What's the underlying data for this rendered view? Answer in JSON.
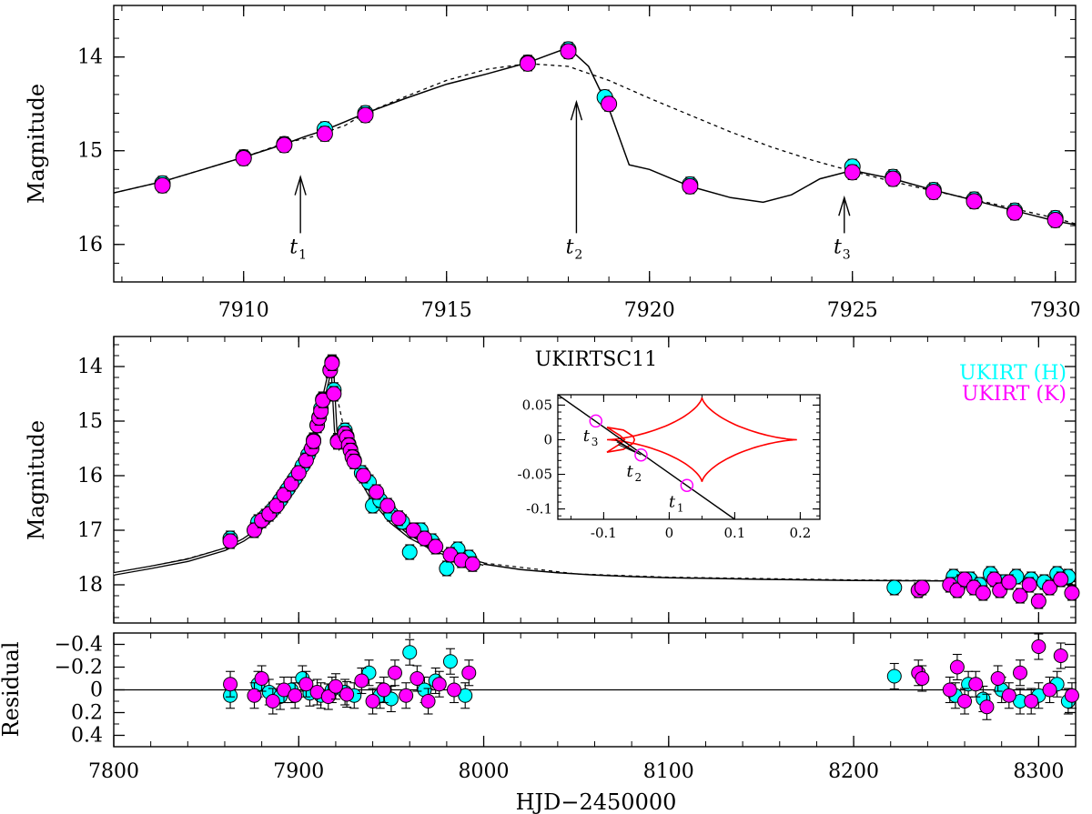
{
  "chart_data": [
    {
      "id": "top-zoom",
      "type": "scatter",
      "ylabel": "Magnitude",
      "xlim": [
        7906.8,
        7930.5
      ],
      "ylim": [
        16.4,
        13.45
      ],
      "xticks": [
        7910,
        7915,
        7920,
        7925,
        7930
      ],
      "xtick_labels": [
        "7910",
        "7915",
        "7920",
        "7925",
        "7930"
      ],
      "yticks": [
        14,
        15,
        16
      ],
      "ytick_labels": [
        "14",
        "15",
        "16"
      ],
      "series": [
        {
          "name": "UKIRT (H)",
          "color": "#00ffff",
          "x": [
            7908.0,
            7910.0,
            7911.0,
            7912.0,
            7913.0,
            7917.0,
            7918.0,
            7918.9,
            7921.0,
            7925.0,
            7926.0,
            7927.0,
            7928.0,
            7929.0,
            7930.0
          ],
          "y": [
            15.35,
            15.07,
            14.93,
            14.77,
            14.6,
            14.06,
            13.92,
            14.43,
            15.36,
            15.17,
            15.28,
            15.42,
            15.52,
            15.64,
            15.72
          ]
        },
        {
          "name": "UKIRT (K)",
          "color": "#ff00ff",
          "x": [
            7908.0,
            7910.0,
            7911.0,
            7912.0,
            7913.0,
            7917.0,
            7918.0,
            7919.0,
            7921.0,
            7925.0,
            7926.0,
            7927.0,
            7928.0,
            7929.0,
            7930.0
          ],
          "y": [
            15.37,
            15.08,
            14.94,
            14.82,
            14.62,
            14.07,
            13.94,
            14.5,
            15.38,
            15.23,
            15.3,
            15.44,
            15.54,
            15.66,
            15.74
          ]
        }
      ],
      "model_solid": {
        "x": [
          7906.8,
          7908,
          7909,
          7910,
          7911,
          7911.5,
          7912,
          7913,
          7914,
          7915,
          7916,
          7917,
          7917.5,
          7918,
          7918.5,
          7919,
          7919.5,
          7920,
          7921,
          7922,
          7922.8,
          7923.5,
          7924.2,
          7925,
          7926,
          7927,
          7928,
          7929,
          7930,
          7930.5
        ],
        "y": [
          15.45,
          15.33,
          15.2,
          15.07,
          14.93,
          14.85,
          14.78,
          14.6,
          14.44,
          14.29,
          14.18,
          14.06,
          13.98,
          13.9,
          14.1,
          14.55,
          15.15,
          15.2,
          15.38,
          15.5,
          15.55,
          15.47,
          15.3,
          15.21,
          15.3,
          15.42,
          15.53,
          15.64,
          15.75,
          15.79
        ]
      },
      "model_dashed": {
        "x": [
          7906.8,
          7908,
          7909,
          7910,
          7911,
          7911.7,
          7912.5,
          7913,
          7914,
          7915,
          7916,
          7917,
          7918,
          7919,
          7920,
          7921,
          7922,
          7923,
          7924,
          7925,
          7926,
          7927,
          7928,
          7929,
          7930,
          7930.5
        ],
        "y": [
          15.45,
          15.33,
          15.2,
          15.07,
          14.92,
          14.85,
          14.73,
          14.6,
          14.42,
          14.25,
          14.13,
          14.07,
          14.1,
          14.25,
          14.44,
          14.62,
          14.8,
          14.96,
          15.1,
          15.22,
          15.33,
          15.43,
          15.52,
          15.62,
          15.72,
          15.78
        ]
      },
      "arrows": [
        {
          "label": "t",
          "sub": "1",
          "x": 7911.4,
          "tip": 15.28,
          "tail": 15.88
        },
        {
          "label": "t",
          "sub": "2",
          "x": 7918.2,
          "tip": 14.48,
          "tail": 15.88
        },
        {
          "label": "t",
          "sub": "3",
          "x": 7924.8,
          "tip": 15.5,
          "tail": 15.88
        }
      ]
    },
    {
      "id": "full-lightcurve",
      "type": "scatter",
      "title": "UKIRTSC11",
      "ylabel": "Magnitude",
      "xlim": [
        7800,
        8320
      ],
      "ylim": [
        18.7,
        13.45
      ],
      "xticks": [
        7800,
        7900,
        8000,
        8100,
        8200,
        8300
      ],
      "yticks": [
        14,
        15,
        16,
        17,
        18
      ],
      "ytick_labels": [
        "14",
        "15",
        "16",
        "17",
        "18"
      ],
      "legend": [
        {
          "label": "UKIRT (H)",
          "color": "#00ffff"
        },
        {
          "label": "UKIRT (K)",
          "color": "#ff00ff"
        }
      ],
      "legend_position": "top-right",
      "series": [
        {
          "name": "UKIRT (H)",
          "color": "#00ffff",
          "x": [
            7863,
            7878,
            7882,
            7886,
            7890,
            7894,
            7898,
            7902,
            7905,
            7908,
            7910,
            7911,
            7912,
            7913,
            7917,
            7918,
            7919,
            7921,
            7925,
            7926,
            7927,
            7928,
            7929,
            7930,
            7934,
            7938,
            7940,
            7944,
            7950,
            7956,
            7960,
            7966,
            7972,
            7980,
            7986,
            7992,
            8222,
            8254,
            8258,
            8263,
            8268,
            8274,
            8281,
            8288,
            8296,
            8303,
            8310,
            8316
          ],
          "y": [
            17.15,
            16.85,
            16.75,
            16.62,
            16.45,
            16.25,
            16.05,
            15.82,
            15.62,
            15.35,
            15.07,
            14.93,
            14.77,
            14.6,
            14.06,
            13.92,
            14.43,
            15.36,
            15.17,
            15.28,
            15.42,
            15.52,
            15.64,
            15.72,
            15.95,
            16.12,
            16.55,
            16.45,
            16.7,
            16.85,
            17.4,
            17.0,
            17.2,
            17.7,
            17.35,
            17.5,
            18.05,
            17.85,
            17.95,
            17.9,
            18.0,
            17.8,
            17.95,
            17.85,
            17.9,
            17.95,
            17.8,
            17.85
          ]
        },
        {
          "name": "UKIRT (K)",
          "color": "#ff00ff",
          "x": [
            7863,
            7876,
            7880,
            7884,
            7888,
            7892,
            7896,
            7900,
            7904,
            7907,
            7908,
            7910,
            7911,
            7912,
            7913,
            7917,
            7918,
            7919,
            7921,
            7925,
            7926,
            7927,
            7928,
            7929,
            7930,
            7935,
            7942,
            7948,
            7954,
            7962,
            7968,
            7974,
            7982,
            7988,
            7994,
            8235,
            8237,
            8252,
            8256,
            8260,
            8265,
            8270,
            8276,
            8279,
            8284,
            8290,
            8295,
            8300,
            8306,
            8312,
            8318
          ],
          "y": [
            17.2,
            17.0,
            16.82,
            16.7,
            16.55,
            16.35,
            16.15,
            15.95,
            15.72,
            15.5,
            15.37,
            15.08,
            14.94,
            14.82,
            14.62,
            14.07,
            13.94,
            14.5,
            15.38,
            15.23,
            15.3,
            15.44,
            15.54,
            15.66,
            15.74,
            16.0,
            16.3,
            16.55,
            16.78,
            17.0,
            17.15,
            17.3,
            17.45,
            17.55,
            17.62,
            18.1,
            18.05,
            18.0,
            18.1,
            17.9,
            18.05,
            18.15,
            17.9,
            18.1,
            17.95,
            18.2,
            18.0,
            18.3,
            18.05,
            17.9,
            18.15
          ]
        }
      ],
      "model_solid": {
        "x": [
          7800,
          7820,
          7840,
          7860,
          7870,
          7880,
          7890,
          7900,
          7905,
          7910,
          7914,
          7917,
          7918,
          7919,
          7920,
          7922,
          7925,
          7930,
          7935,
          7940,
          7950,
          7960,
          7970,
          7980,
          8000,
          8020,
          8040,
          8060,
          8080,
          8100,
          8150,
          8200,
          8250,
          8300,
          8320
        ],
        "y": [
          17.8,
          17.68,
          17.55,
          17.35,
          17.18,
          16.95,
          16.6,
          16.0,
          15.6,
          15.07,
          14.5,
          14.06,
          13.9,
          14.55,
          15.18,
          15.45,
          15.21,
          15.75,
          16.15,
          16.45,
          16.85,
          17.12,
          17.3,
          17.45,
          17.62,
          17.72,
          17.78,
          17.82,
          17.85,
          17.87,
          17.9,
          17.92,
          17.93,
          17.94,
          17.94
        ]
      },
      "model_dashed": {
        "x": [
          7800,
          7820,
          7840,
          7860,
          7870,
          7880,
          7890,
          7900,
          7905,
          7910,
          7914,
          7917,
          7920,
          7925,
          7930,
          7935,
          7940,
          7950,
          7960,
          7970,
          7980,
          8000,
          8050,
          8100,
          8200,
          8320
        ],
        "y": [
          17.78,
          17.66,
          17.52,
          17.33,
          17.16,
          16.93,
          16.58,
          15.98,
          15.58,
          15.05,
          14.45,
          14.08,
          14.44,
          15.22,
          15.72,
          16.12,
          16.42,
          16.83,
          17.1,
          17.28,
          17.43,
          17.6,
          17.8,
          17.86,
          17.91,
          17.94
        ]
      },
      "inset": {
        "xlim": [
          -0.17,
          0.23
        ],
        "ylim": [
          -0.115,
          0.065
        ],
        "xticks": [
          -0.1,
          0,
          0.1,
          0.2
        ],
        "xtick_labels": [
          "-0.1",
          "0",
          "0.1",
          "0.2"
        ],
        "yticks": [
          0.05,
          0,
          -0.05,
          -0.1
        ],
        "ytick_labels": [
          "0.05",
          "0",
          "-0.05",
          "-0.1"
        ],
        "caustic_color": "#ff0000",
        "trajectory": {
          "x": [
            -0.17,
            0.1
          ],
          "y": [
            0.065,
            -0.115
          ]
        },
        "source_positions": [
          {
            "label": "t",
            "sub": "1",
            "x": 0.027,
            "y": -0.066
          },
          {
            "label": "t",
            "sub": "2",
            "x": -0.043,
            "y": -0.022
          },
          {
            "label": "t",
            "sub": "3",
            "x": -0.112,
            "y": 0.027
          }
        ],
        "source_color": "#ff00ff"
      }
    },
    {
      "id": "residuals",
      "type": "scatter",
      "xlabel": "HJD−2450000",
      "ylabel": "Residual",
      "xlim": [
        7800,
        8320
      ],
      "ylim": [
        0.5,
        -0.5
      ],
      "xticks": [
        7800,
        7900,
        8000,
        8100,
        8200,
        8300
      ],
      "xtick_labels": [
        "7800",
        "7900",
        "8000",
        "8100",
        "8200",
        "8300"
      ],
      "yticks": [
        0.4,
        0.2,
        0,
        -0.2,
        -0.4
      ],
      "ytick_labels": [
        "0.4",
        "0.2",
        "0",
        "−0.2",
        "−0.4"
      ],
      "series": [
        {
          "name": "UKIRT (H)",
          "color": "#00ffff",
          "x": [
            7863,
            7878,
            7884,
            7890,
            7896,
            7902,
            7906,
            7912,
            7918,
            7925,
            7930,
            7938,
            7944,
            7950,
            7960,
            7968,
            7974,
            7982,
            7990,
            8222,
            8255,
            8262,
            8270,
            8280,
            8290,
            8300,
            8310,
            8316
          ],
          "y": [
            0.05,
            -0.05,
            0.02,
            0.06,
            0.0,
            -0.1,
            0.03,
            0.05,
            0.0,
            0.02,
            0.05,
            -0.15,
            0.05,
            0.08,
            -0.33,
            0.0,
            -0.08,
            -0.25,
            0.05,
            -0.12,
            0.05,
            -0.05,
            0.08,
            0.0,
            0.1,
            0.05,
            -0.05,
            0.1
          ]
        },
        {
          "name": "UKIRT (K)",
          "color": "#ff00ff",
          "x": [
            7863,
            7876,
            7880,
            7886,
            7892,
            7898,
            7904,
            7910,
            7916,
            7920,
            7926,
            7934,
            7940,
            7946,
            7952,
            7958,
            7964,
            7970,
            7976,
            7984,
            7992,
            8235,
            8237,
            8252,
            8256,
            8260,
            8266,
            8272,
            8278,
            8284,
            8290,
            8296,
            8300,
            8306,
            8312,
            8318
          ],
          "y": [
            -0.05,
            0.05,
            -0.1,
            0.1,
            0.0,
            0.05,
            -0.05,
            0.02,
            0.06,
            -0.03,
            0.04,
            -0.08,
            0.1,
            0.0,
            -0.15,
            0.05,
            -0.1,
            0.1,
            -0.05,
            0.0,
            -0.15,
            -0.15,
            -0.1,
            0.0,
            -0.2,
            0.1,
            -0.05,
            0.15,
            -0.1,
            0.05,
            -0.15,
            0.1,
            -0.38,
            0.0,
            -0.3,
            0.05
          ]
        }
      ]
    }
  ]
}
